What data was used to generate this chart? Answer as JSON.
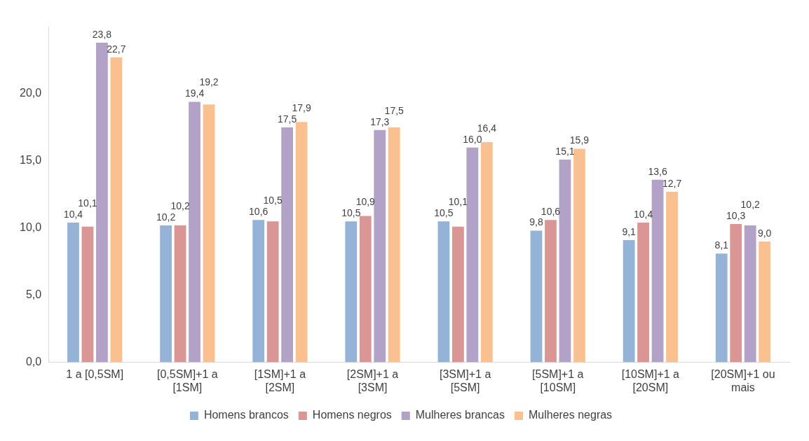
{
  "chart_data": {
    "type": "bar",
    "categories": [
      "1 a [0,5SM]",
      "[0,5SM]+1 a [1SM]",
      "[1SM]+1 a [2SM]",
      "[2SM]+1 a [3SM]",
      "[3SM]+1 a [5SM]",
      "[5SM]+1 a [10SM]",
      "[10SM]+1 a [20SM]",
      "[20SM]+1 ou mais"
    ],
    "series": [
      {
        "name": "Homens brancos",
        "color": "#95b3d7",
        "values": [
          10.4,
          10.2,
          10.6,
          10.5,
          10.5,
          9.8,
          9.1,
          8.1
        ],
        "value_labels": [
          "10,4",
          "10,2",
          "10,6",
          "10,5",
          "10,5",
          "9,8",
          "9,1",
          "8,1"
        ]
      },
      {
        "name": "Homens negros",
        "color": "#d99694",
        "values": [
          10.1,
          10.2,
          10.5,
          10.9,
          10.1,
          10.6,
          10.4,
          10.3
        ],
        "value_labels": [
          "10,1",
          "10,2",
          "10,5",
          "10,9",
          "10,1",
          "10,6",
          "10,4",
          "10,3"
        ]
      },
      {
        "name": "Mulheres brancas",
        "color": "#b3a2c7",
        "values": [
          23.8,
          19.4,
          17.5,
          17.3,
          16.0,
          15.1,
          13.6,
          10.2
        ],
        "value_labels": [
          "23,8",
          "19,4",
          "17,5",
          "17,3",
          "16,0",
          "15,1",
          "13,6",
          "10,2"
        ]
      },
      {
        "name": "Mulheres negras",
        "color": "#fac090",
        "values": [
          22.7,
          19.2,
          17.9,
          17.5,
          16.4,
          15.9,
          12.7,
          9.0
        ],
        "value_labels": [
          "22,7",
          "19,2",
          "17,9",
          "17,5",
          "16,4",
          "15,9",
          "12,7",
          "9,0"
        ]
      }
    ],
    "yticks": [
      {
        "value": 0,
        "label": "0,0"
      },
      {
        "value": 5,
        "label": "5,0"
      },
      {
        "value": 10,
        "label": "10,0"
      },
      {
        "value": 15,
        "label": "15,0"
      },
      {
        "value": 20,
        "label": "20,0"
      }
    ],
    "ylim": [
      0,
      25
    ],
    "grid": false,
    "legend": "bottom"
  }
}
